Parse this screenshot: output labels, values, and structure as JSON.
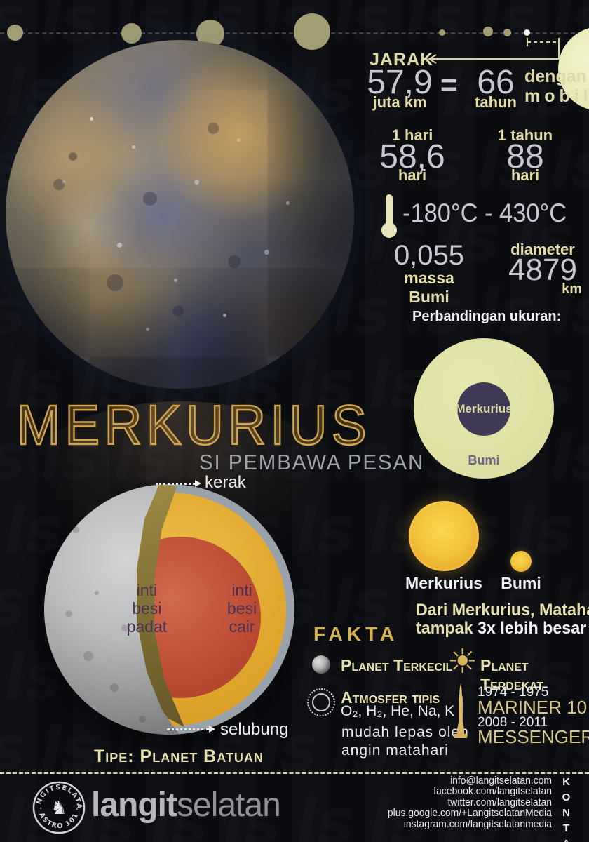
{
  "stats": {
    "jarak": {
      "label": "JARAK",
      "value": "57,9",
      "unit": "juta km",
      "equals": "=",
      "car_value": "66",
      "car_unit": "tahun",
      "car_note1": "dengan",
      "car_note2": "mobil"
    },
    "rotation": {
      "label": "1 hari",
      "value": "58,6",
      "unit": "hari"
    },
    "revolution": {
      "label": "1 tahun",
      "value": "88",
      "unit": "hari"
    },
    "temperature": "-180°C - 430°C",
    "mass": {
      "value": "0,055",
      "unit": "massa Bumi"
    },
    "diameter": {
      "label": "diameter",
      "value": "4879",
      "unit": "km"
    }
  },
  "size_comparison": {
    "title": "Perbandingan ukuran:",
    "inner_label": "Merkurius",
    "outer_label": "Bumi"
  },
  "title_block": {
    "title": "MERKURIUS",
    "subtitle": "SI PEMBAWA PESAN"
  },
  "interior": {
    "crust": "kerak",
    "mantle": "selubung",
    "solid_core": "inti\nbesi\npadat",
    "liquid_core": "inti\nbesi\ncair",
    "type": "Tipe: Planet Batuan"
  },
  "sun_view": {
    "big_label": "Merkurius",
    "small_label": "Bumi",
    "note_line1": "Dari Merkurius, Matahari",
    "note_prefix": "tampak ",
    "note_bold": "3x lebih besar"
  },
  "fakta": {
    "title": "FAKTA",
    "smallest": "Planet Terkecil",
    "atmosphere_title": "Atmosfer tipis",
    "atmosphere_gases": "O₂, H₂, He, Na, K",
    "atmosphere_note": "mudah lepas oleh\nangin matahari",
    "closest": "Planet Terdekat",
    "missions": [
      {
        "years": "1974 - 1975",
        "name": "MARINER 10"
      },
      {
        "years": "2008 - 2011",
        "name": "MESSENGER"
      }
    ]
  },
  "footer": {
    "stamp_top": "LANGITSELATAN",
    "stamp_bottom": "· ASTRO 101 ·",
    "logo_bold": "langit",
    "logo_light": "selatan",
    "contacts": [
      "info@langitselatan.com",
      "facebook.com/langitselatan",
      "twitter.com/langitselatan",
      "plus.google.com/+LangitselatanMedia",
      "instagram.com/langitselatanmedia"
    ],
    "kontak": "KONTAK"
  },
  "colors": {
    "accent_gold": "#d4a64c",
    "cream": "#e3dca6",
    "number_gray": "#c7c6d3",
    "white": "#f0f1f3",
    "core_red": "#bc4c34",
    "mantle_yellow": "#e0a62d",
    "crust_gray": "#99a1aa",
    "pale_sun": "#e7e8b2",
    "sun_orange": "#f1c13a",
    "comparison_purple": "#413a56",
    "background": "#0b0c10"
  }
}
